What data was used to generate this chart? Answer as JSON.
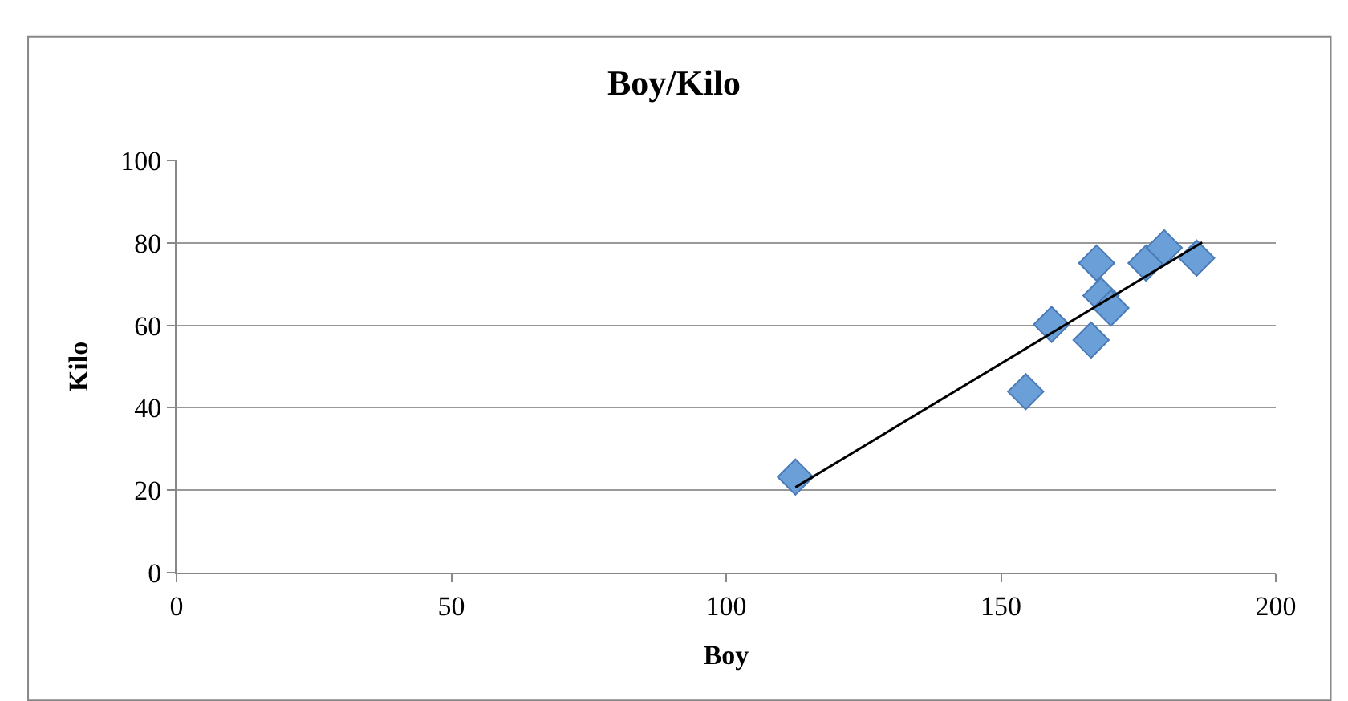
{
  "chart_data": {
    "type": "scatter",
    "title": "Boy/Kilo",
    "xlabel": "Boy",
    "ylabel": "Kilo",
    "xlim": [
      0,
      200
    ],
    "xticks": [
      0,
      50,
      100,
      150,
      200
    ],
    "ylim": [
      0,
      100
    ],
    "yticks": [
      0,
      20,
      40,
      60,
      80,
      100
    ],
    "grid": "y",
    "legend": false,
    "marker": "diamond",
    "series": [
      {
        "color": "#6a9fd8",
        "x": [
          112.6,
          154.5,
          159.2,
          166.4,
          167.4,
          168.2,
          170,
          176.4,
          179.7,
          185.6
        ],
        "values": [
          23.2,
          43.9,
          60.2,
          56.4,
          75.1,
          67.2,
          64.2,
          75.1,
          78.8,
          76.3
        ]
      },
      {
        "type": "line",
        "marker": "none",
        "color": "#000000",
        "x": [
          112.6,
          186.6
        ],
        "values": [
          20.7,
          80.1
        ]
      }
    ]
  }
}
